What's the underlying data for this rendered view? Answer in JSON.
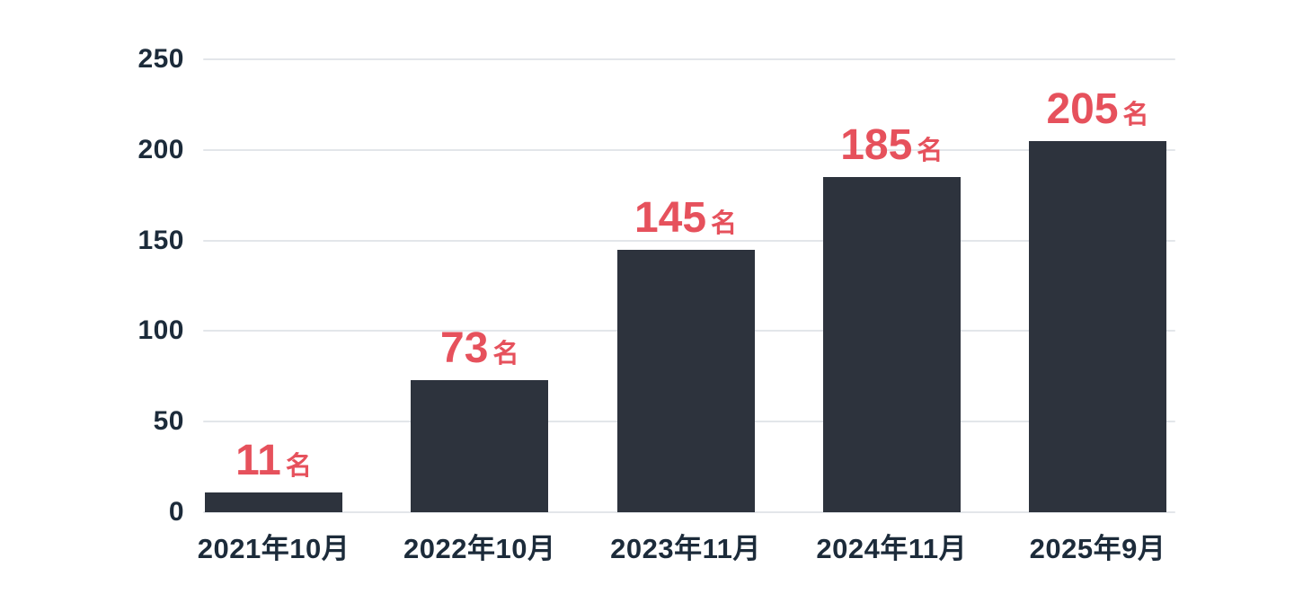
{
  "chart_data": {
    "type": "bar",
    "title": "",
    "xlabel": "",
    "ylabel": "",
    "categories": [
      "2021年10月",
      "2022年10月",
      "2023年11月",
      "2024年11月",
      "2025年9月"
    ],
    "values": [
      11,
      73,
      145,
      185,
      205
    ],
    "value_suffix": "名",
    "y_ticks": [
      0,
      50,
      100,
      150,
      200,
      250
    ],
    "ylim": [
      0,
      250
    ],
    "grid": "horizontal-only",
    "legend": "none",
    "colors": {
      "bar": "#2d333d",
      "value_label": "#e6515c",
      "axis_text": "#1c2b3a",
      "gridline": "#e3e6ea",
      "background": "#ffffff"
    }
  }
}
